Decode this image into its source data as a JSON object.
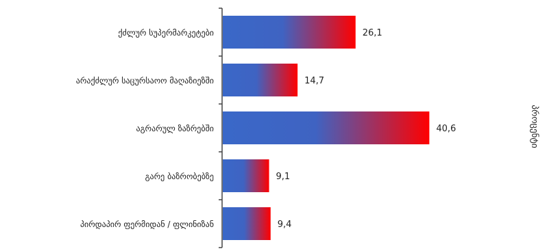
{
  "chart_data": {
    "type": "bar",
    "orientation": "horizontal",
    "categories": [
      "ქძლურ სუპერმარკეტები",
      "არაქძლურ საცურსაოო მაღაზიეზში",
      "აგრარულ ზაზრებში",
      "გარე ბაზრობებზე",
      "პირდაპირ ფერმიდან / ფლინიზან"
    ],
    "values": [
      26.1,
      14.7,
      40.6,
      9.1,
      9.4
    ],
    "value_labels": [
      "26,1",
      "14,7",
      "40,6",
      "9,1",
      "9,4"
    ],
    "xlim": [
      0,
      45
    ],
    "ylabel": "პროცენტი",
    "grid": false,
    "legend": "none",
    "colors": {
      "bar_start": "#3a68c8",
      "bar_mid": "#3f63c2",
      "bar_end": "#ff0000",
      "axis": "#444444",
      "text": "#222222"
    }
  }
}
